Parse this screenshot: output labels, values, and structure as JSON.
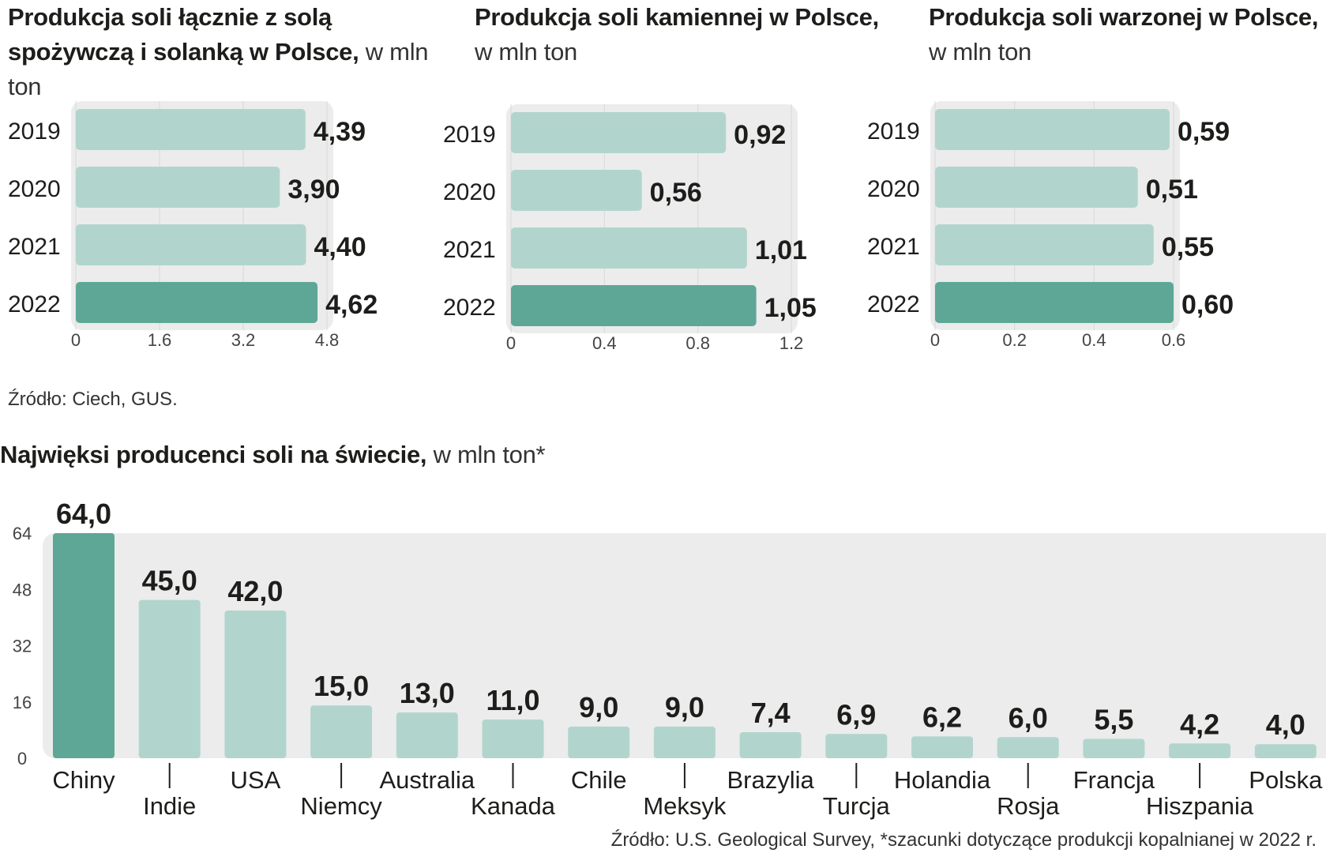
{
  "chart_data": [
    {
      "type": "bar",
      "orientation": "horizontal",
      "title_bold": "Produkcja soli łącznie z solą spożywczą i solanką w Polsce,",
      "title_unit": "w mln ton",
      "categories": [
        "2019",
        "2020",
        "2021",
        "2022"
      ],
      "values": [
        4.39,
        3.9,
        4.4,
        4.62
      ],
      "value_labels": [
        "4,39",
        "3,90",
        "4,40",
        "4,62"
      ],
      "xlim": [
        0,
        4.8
      ],
      "ticks": [
        "0",
        "1.6",
        "3.2",
        "4.8"
      ],
      "highlight_index": 3
    },
    {
      "type": "bar",
      "orientation": "horizontal",
      "title_bold": "Produkcja soli kamiennej w Polsce,",
      "title_unit": "w mln ton",
      "categories": [
        "2019",
        "2020",
        "2021",
        "2022"
      ],
      "values": [
        0.92,
        0.56,
        1.01,
        1.05
      ],
      "value_labels": [
        "0,92",
        "0,56",
        "1,01",
        "1,05"
      ],
      "xlim": [
        0,
        1.2
      ],
      "ticks": [
        "0",
        "0.4",
        "0.8",
        "1.2"
      ],
      "highlight_index": 3
    },
    {
      "type": "bar",
      "orientation": "horizontal",
      "title_bold": "Produkcja soli warzonej w Polsce,",
      "title_unit": "w mln ton",
      "categories": [
        "2019",
        "2020",
        "2021",
        "2022"
      ],
      "values": [
        0.59,
        0.51,
        0.55,
        0.6
      ],
      "value_labels": [
        "0,59",
        "0,51",
        "0,55",
        "0,60"
      ],
      "xlim": [
        0,
        0.6
      ],
      "ticks": [
        "0",
        "0.2",
        "0.4",
        "0.6"
      ],
      "highlight_index": 3
    },
    {
      "type": "bar",
      "orientation": "vertical",
      "title_bold": "Najwięksi producenci soli na świecie,",
      "title_unit": "w mln ton*",
      "categories": [
        "Chiny",
        "Indie",
        "USA",
        "Niemcy",
        "Australia",
        "Kanada",
        "Chile",
        "Meksyk",
        "Brazylia",
        "Turcja",
        "Holandia",
        "Rosja",
        "Francja",
        "Hiszpania",
        "Polska"
      ],
      "values": [
        64.0,
        45.0,
        42.0,
        15.0,
        13.0,
        11.0,
        9.0,
        9.0,
        7.4,
        6.9,
        6.2,
        6.0,
        5.5,
        4.2,
        4.0
      ],
      "value_labels": [
        "64,0",
        "45,0",
        "42,0",
        "15,0",
        "13,0",
        "11,0",
        "9,0",
        "9,0",
        "7,4",
        "6,9",
        "6,2",
        "6,0",
        "5,5",
        "4,2",
        "4,0"
      ],
      "ylim": [
        0,
        64
      ],
      "ticks": [
        "0",
        "16",
        "32",
        "48",
        "64"
      ],
      "highlight_index": 0
    }
  ],
  "sources": {
    "poland": "Źródło: Ciech, GUS.",
    "world": "Źródło: U.S. Geological Survey, *szacunki dotyczące produkcji kopalnianej w 2022 r."
  },
  "colors": {
    "bar": "#b1d5cd",
    "highlight": "#5ea797",
    "plot_bg": "#ececec",
    "text": "#1d1d1b"
  }
}
